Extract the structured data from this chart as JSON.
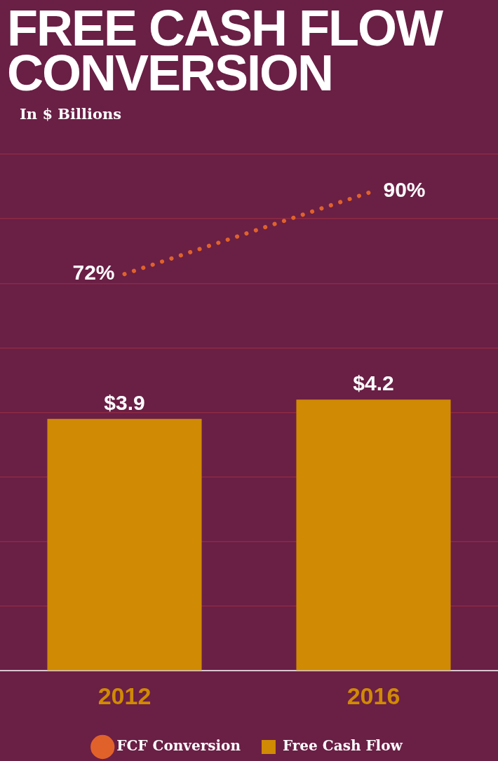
{
  "chart_data": {
    "type": "bar",
    "title": "FREE CASH FLOW CONVERSION",
    "subtitle": "In $ Billions",
    "categories": [
      "2012",
      "2016"
    ],
    "series": [
      {
        "name": "Free Cash Flow",
        "color": "#d08a04",
        "values": [
          3.9,
          4.2
        ],
        "value_labels": [
          "$3.9",
          "$4.2"
        ]
      },
      {
        "name": "FCF Conversion",
        "type": "line",
        "axis": "y2",
        "color": "#e0622a",
        "values": [
          72,
          90
        ],
        "value_labels": [
          "72%",
          "90%"
        ],
        "marker": "none",
        "line_style": "dotted"
      }
    ],
    "ylim": [
      0,
      8
    ],
    "yticks": [
      {
        "value": 0,
        "label": null
      },
      {
        "value": 1,
        "label": null
      },
      {
        "value": 2,
        "label": null
      },
      {
        "value": 3,
        "label": null
      },
      {
        "value": 4,
        "label": null
      },
      {
        "value": 5,
        "label": null
      },
      {
        "value": 6,
        "label": null
      },
      {
        "value": 7,
        "label": null
      },
      {
        "value": 8,
        "label": null
      }
    ],
    "y2lim": [
      -14,
      98
    ],
    "grid": "y",
    "legend": "bottom",
    "tick_labels": "x"
  }
}
